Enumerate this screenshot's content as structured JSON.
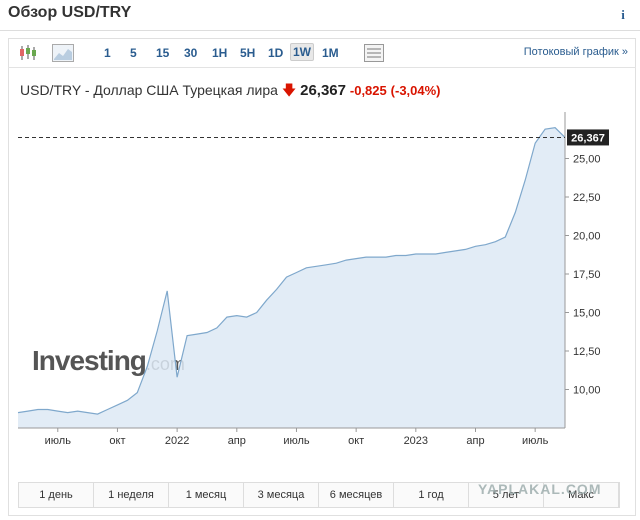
{
  "header": {
    "title": "Обзор USD/TRY",
    "info": "i"
  },
  "toolbar": {
    "timeframes": [
      "1",
      "5",
      "15",
      "30",
      "1H",
      "5H",
      "1D",
      "1W",
      "1M"
    ],
    "selected": "1W",
    "streaming": "Потоковый график »"
  },
  "quote": {
    "name": "USD/TRY - Доллар США Турецкая лира",
    "price": "26,367",
    "change": "-0,825",
    "change_pct": "(-3,04%)"
  },
  "ranges": [
    "1 день",
    "1 неделя",
    "1 месяц",
    "3 месяца",
    "6 месяцев",
    "1 год",
    "5 лет",
    "Макс"
  ],
  "watermark": "YAPLAKAL.COM",
  "chart_data": {
    "type": "area",
    "logo": {
      "main": "Investing",
      "suffix": ".com"
    },
    "categories": [
      null,
      null,
      null,
      null,
      "июль",
      null,
      null,
      null,
      null,
      null,
      "окт",
      null,
      null,
      null,
      null,
      null,
      "2022",
      null,
      null,
      null,
      null,
      null,
      "апр",
      null,
      null,
      null,
      null,
      null,
      "июль",
      null,
      null,
      null,
      null,
      null,
      "окт",
      null,
      null,
      null,
      null,
      null,
      "2023",
      null,
      null,
      null,
      null,
      null,
      "апр",
      null,
      null,
      null,
      null,
      null,
      "июль",
      null,
      null,
      null
    ],
    "values": [
      8.5,
      8.6,
      8.7,
      8.7,
      8.6,
      8.5,
      8.6,
      8.5,
      8.4,
      8.7,
      9.0,
      9.3,
      9.8,
      11.5,
      13.8,
      16.4,
      10.8,
      13.5,
      13.6,
      13.7,
      14.0,
      14.7,
      14.8,
      14.7,
      15.0,
      15.8,
      16.5,
      17.3,
      17.6,
      17.9,
      18.0,
      18.1,
      18.2,
      18.4,
      18.5,
      18.6,
      18.6,
      18.6,
      18.7,
      18.7,
      18.8,
      18.8,
      18.8,
      18.9,
      19.0,
      19.1,
      19.3,
      19.4,
      19.6,
      19.9,
      21.5,
      23.6,
      26.0,
      26.9,
      27.0,
      26.367
    ],
    "last_label": "26,367",
    "color": "#7fa8cc",
    "fill": "#dde9f4",
    "ylim": [
      7.5,
      27.5
    ],
    "yticks": [
      {
        "value": 10,
        "label": "10,00"
      },
      {
        "value": 12.5,
        "label": "12,50"
      },
      {
        "value": 15,
        "label": "15,00"
      },
      {
        "value": 17.5,
        "label": "17,50"
      },
      {
        "value": 20,
        "label": "20,00"
      },
      {
        "value": 22.5,
        "label": "22,50"
      },
      {
        "value": 25,
        "label": "25,00"
      }
    ]
  }
}
